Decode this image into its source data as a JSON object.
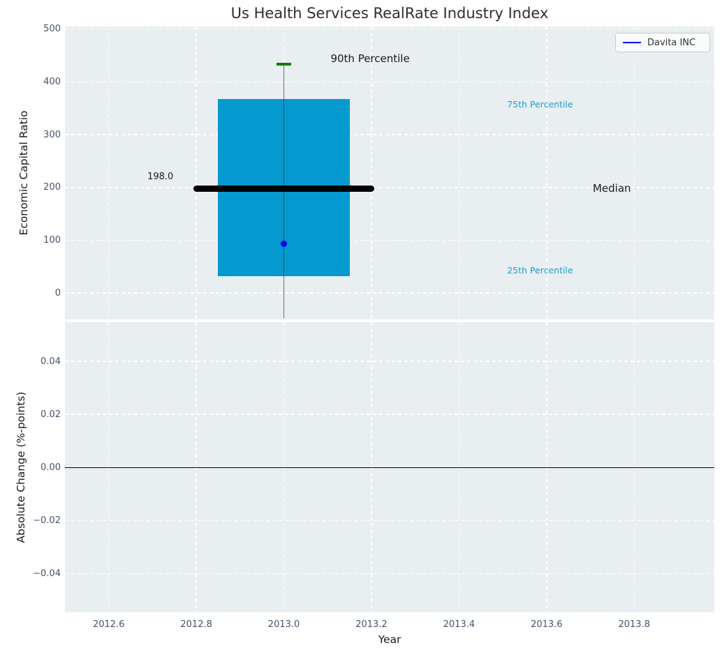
{
  "title": "Us Health Services RealRate Industry Index",
  "legend": {
    "label": "Davita INC"
  },
  "colors": {
    "axes_bg": "#e9eef0",
    "grid": "#ffffff",
    "tick_text": "#44526b",
    "dark_text": "#1a1a1a",
    "accent_box": "#0699cf",
    "accent_text": "#1f9dd3",
    "median_line": "#000000",
    "percentile90_cap": "#007f00",
    "company_point": "#0000ee",
    "legend_line": "#0000ee",
    "whisker": "rgba(40,40,40,0.65)",
    "zero_line": "#000000"
  },
  "chart_data": {
    "type": "box",
    "title": "Us Health Services RealRate Industry Index",
    "xlabel": "Year",
    "xlim": [
      2012.5,
      2013.983
    ],
    "xticks": [
      {
        "v": 2012.6,
        "label": "2012.6"
      },
      {
        "v": 2012.8,
        "label": "2012.8"
      },
      {
        "v": 2013.0,
        "label": "2013.0"
      },
      {
        "v": 2013.2,
        "label": "2013.2"
      },
      {
        "v": 2013.4,
        "label": "2013.4"
      },
      {
        "v": 2013.6,
        "label": "2013.6"
      },
      {
        "v": 2013.8,
        "label": "2013.8"
      }
    ],
    "legend_entries": [
      {
        "name": "Davita INC"
      }
    ],
    "panels": [
      {
        "name": "economic-capital-ratio",
        "ylabel": "Economic Capital Ratio",
        "ylim": [
          -50,
          505
        ],
        "yticks": [
          {
            "v": 0,
            "label": "0"
          },
          {
            "v": 100,
            "label": "100"
          },
          {
            "v": 200,
            "label": "200"
          },
          {
            "v": 300,
            "label": "300"
          },
          {
            "v": 400,
            "label": "400"
          },
          {
            "v": 500,
            "label": "500"
          }
        ],
        "box": {
          "x": 2013.0,
          "q25": 32,
          "median": 198,
          "q75": 367,
          "p90": 433,
          "whisker_low": -47,
          "box_halfwidth": 0.15,
          "median_halfwidth": 0.2,
          "cap_halfwidth": 0.017
        },
        "median_value_label": "198.0",
        "company_point": {
          "name": "Davita INC",
          "x": 2013.0,
          "y": 94
        },
        "annotations": [
          {
            "text": "90th Percentile",
            "x": 2013.197,
            "y": 444,
            "style": "dark",
            "size": 15
          },
          {
            "text": "75th Percentile",
            "x": 2013.585,
            "y": 357,
            "style": "accent",
            "size": 12.5
          },
          {
            "text": "Median",
            "x": 2013.749,
            "y": 198.5,
            "style": "dark",
            "size": 15
          },
          {
            "text": "25th Percentile",
            "x": 2013.585,
            "y": 43,
            "style": "accent",
            "size": 12.5
          },
          {
            "text": "198.0",
            "x": 2012.718,
            "y": 219,
            "style": "dark",
            "size": 13
          }
        ]
      },
      {
        "name": "absolute-change",
        "ylabel": "Absolute Change (%-points)",
        "ylim": [
          -0.0545,
          0.0547
        ],
        "yticks": [
          {
            "v": 0.04,
            "label": "0.04"
          },
          {
            "v": 0.02,
            "label": "0.02"
          },
          {
            "v": 0.0,
            "label": "0.00"
          },
          {
            "v": -0.02,
            "label": "−0.02"
          },
          {
            "v": -0.04,
            "label": "−0.04"
          }
        ],
        "zero_line": 0.0
      }
    ]
  }
}
